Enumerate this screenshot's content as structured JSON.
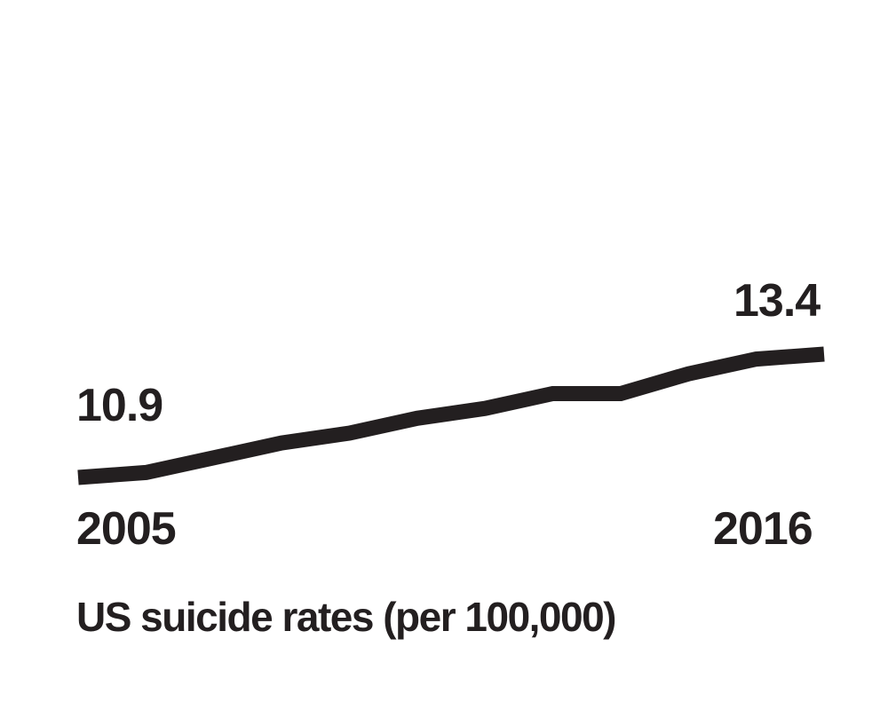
{
  "chart_data": {
    "type": "line",
    "title": "US suicide rates (per 100,000)",
    "xlabel": "",
    "ylabel": "",
    "x": [
      2005,
      2006,
      2007,
      2008,
      2009,
      2010,
      2011,
      2012,
      2013,
      2014,
      2015,
      2016
    ],
    "series": [
      {
        "values": [
          10.9,
          11.0,
          11.3,
          11.6,
          11.8,
          12.1,
          12.3,
          12.6,
          12.6,
          13.0,
          13.3,
          13.4
        ]
      }
    ],
    "ylim": [
      10.0,
      14.0
    ],
    "grid": false,
    "legend": "none",
    "tick_labels": [
      "2005",
      "2016"
    ],
    "value_labels": [
      "10.9",
      "13.4"
    ],
    "line_color": "#231f20",
    "text_color": "#231f20",
    "background": "#ffffff"
  }
}
